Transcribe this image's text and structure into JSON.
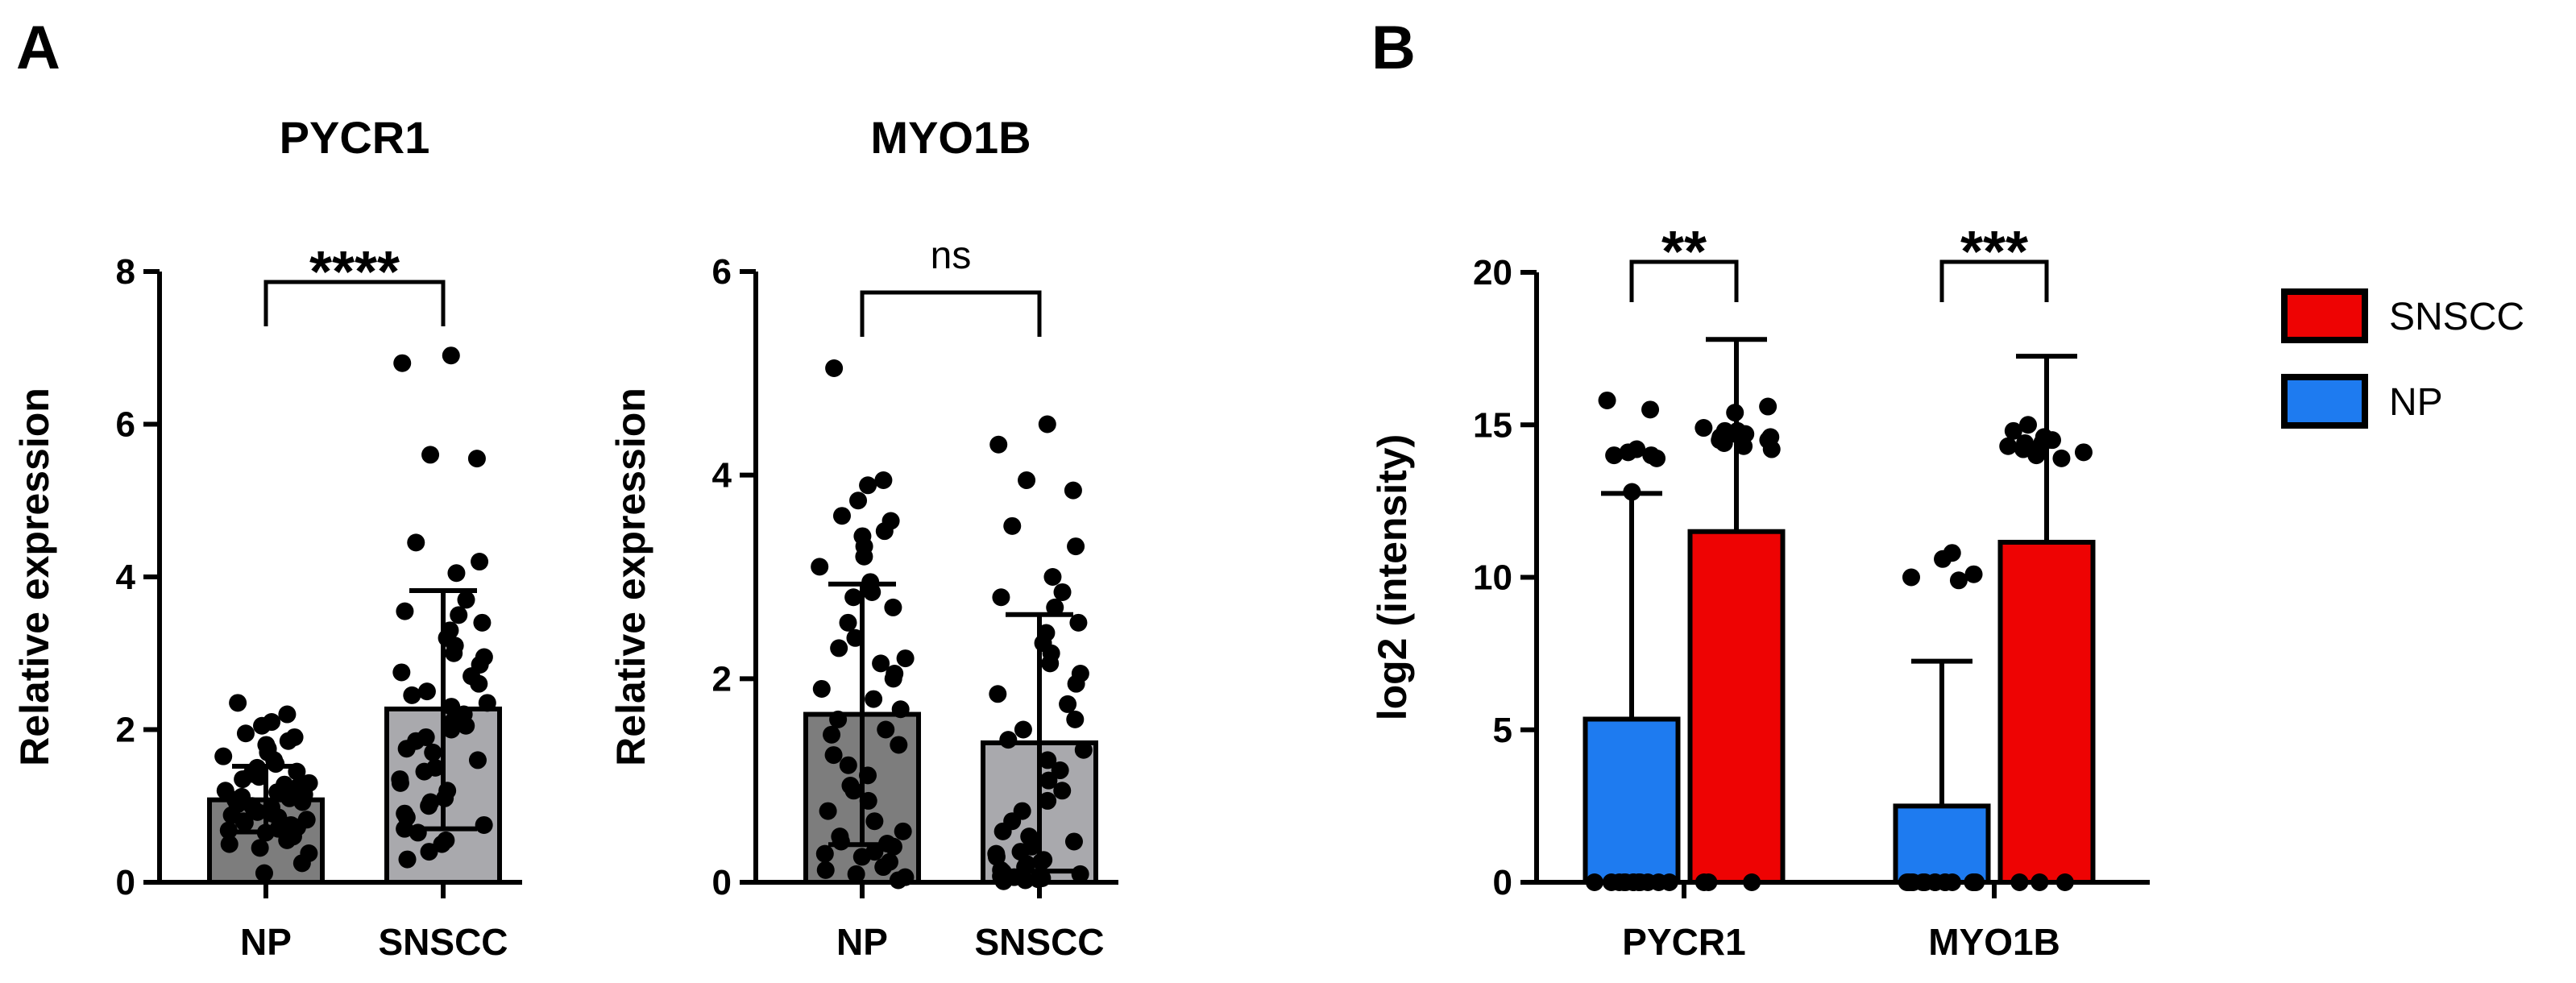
{
  "panels": [
    {
      "letter": "A"
    },
    {
      "letter": "B"
    }
  ],
  "chart_data": [
    {
      "type": "bar",
      "panel": "A",
      "title": "PYCR1",
      "ylabel": "Relative expression",
      "ylim": [
        0,
        8
      ],
      "yticks": [
        "0",
        "2",
        "4",
        "6",
        "8"
      ],
      "categories": [
        "NP",
        "SNSCC"
      ],
      "values": [
        1.08,
        2.27
      ],
      "error_upper": [
        1.52,
        3.82
      ],
      "error_lower": [
        0.66,
        0.7
      ],
      "colors": [
        "#7d7d7d",
        "#a9a9ad"
      ],
      "significance": "****",
      "points": [
        [
          2.35,
          2.2,
          2.1,
          2.05,
          1.95,
          1.9,
          1.85,
          1.8,
          1.75,
          1.7,
          1.65,
          1.6,
          1.55,
          1.5,
          1.45,
          1.42,
          1.38,
          1.35,
          1.3,
          1.28,
          1.25,
          1.22,
          1.2,
          1.18,
          1.15,
          1.12,
          1.1,
          1.08,
          1.05,
          1.02,
          1.0,
          0.98,
          0.95,
          0.92,
          0.9,
          0.88,
          0.85,
          0.82,
          0.8,
          0.78,
          0.75,
          0.72,
          0.7,
          0.68,
          0.65,
          0.6,
          0.55,
          0.5,
          0.45,
          0.38,
          0.25,
          0.12
        ],
        [
          6.9,
          6.8,
          5.6,
          5.55,
          4.45,
          4.2,
          4.05,
          3.7,
          3.55,
          3.5,
          3.4,
          3.3,
          3.2,
          3.1,
          3.0,
          2.95,
          2.85,
          2.75,
          2.7,
          2.6,
          2.5,
          2.45,
          2.35,
          2.3,
          2.2,
          2.1,
          2.05,
          2.0,
          1.9,
          1.85,
          1.75,
          1.7,
          1.6,
          1.5,
          1.45,
          1.35,
          1.3,
          1.2,
          1.1,
          1.05,
          1.0,
          0.9,
          0.85,
          0.75,
          0.7,
          0.65,
          0.55,
          0.5,
          0.4,
          0.3
        ]
      ]
    },
    {
      "type": "bar",
      "panel": "A",
      "title": "MYO1B",
      "ylabel": "Relative expression",
      "ylim": [
        0,
        6
      ],
      "yticks": [
        "0",
        "2",
        "4",
        "6"
      ],
      "categories": [
        "NP",
        "SNSCC"
      ],
      "values": [
        1.65,
        1.37
      ],
      "error_upper": [
        2.93,
        2.63
      ],
      "error_lower": [
        0.37,
        0.11
      ],
      "colors": [
        "#7d7d7d",
        "#a9a9ad"
      ],
      "significance": "ns",
      "points": [
        [
          5.05,
          3.95,
          3.9,
          3.75,
          3.6,
          3.55,
          3.45,
          3.4,
          3.3,
          3.2,
          3.1,
          2.95,
          2.85,
          2.8,
          2.7,
          2.55,
          2.4,
          2.3,
          2.2,
          2.15,
          2.05,
          2.0,
          1.9,
          1.8,
          1.7,
          1.6,
          1.5,
          1.45,
          1.35,
          1.25,
          1.15,
          1.05,
          0.95,
          0.9,
          0.8,
          0.7,
          0.6,
          0.5,
          0.45,
          0.4,
          0.38,
          0.35,
          0.3,
          0.28,
          0.25,
          0.2,
          0.15,
          0.12,
          0.08,
          0.05,
          0.02
        ],
        [
          4.5,
          4.3,
          3.95,
          3.85,
          3.5,
          3.3,
          3.0,
          2.85,
          2.8,
          2.7,
          2.55,
          2.45,
          2.35,
          2.25,
          2.15,
          2.05,
          1.95,
          1.85,
          1.75,
          1.6,
          1.5,
          1.4,
          1.3,
          1.2,
          1.1,
          1.0,
          0.9,
          0.8,
          0.7,
          0.6,
          0.5,
          0.45,
          0.4,
          0.35,
          0.3,
          0.28,
          0.25,
          0.22,
          0.2,
          0.18,
          0.15,
          0.12,
          0.1,
          0.08,
          0.06,
          0.05,
          0.04,
          0.03,
          0.02,
          0.01
        ]
      ]
    },
    {
      "type": "bar",
      "panel": "B",
      "title": "",
      "ylabel": "log2 (intensity)",
      "ylim": [
        0,
        20
      ],
      "yticks": [
        "0",
        "5",
        "10",
        "15",
        "20"
      ],
      "categories": [
        "PYCR1",
        "MYO1B"
      ],
      "series": [
        {
          "name": "NP",
          "color": "#1e7bf0",
          "values": [
            5.35,
            2.5
          ],
          "error_upper": [
            12.75,
            7.25
          ],
          "points": [
            [
              15.8,
              15.5,
              14.2,
              14.1,
              14.0,
              13.9,
              14.0,
              12.8,
              0,
              0,
              0,
              0,
              0,
              0,
              0,
              0,
              0,
              0,
              0,
              0
            ],
            [
              10.8,
              10.6,
              10.1,
              9.9,
              10.0,
              0,
              0,
              0,
              0,
              0,
              0,
              0,
              0,
              0,
              0,
              0,
              0,
              0,
              0,
              0
            ]
          ]
        },
        {
          "name": "SNSCC",
          "color": "#ee0303",
          "values": [
            11.5,
            11.15
          ],
          "error_upper": [
            17.8,
            17.25
          ],
          "points": [
            [
              15.6,
              15.4,
              14.8,
              14.7,
              14.9,
              14.5,
              14.6,
              14.4,
              14.7,
              14.3,
              14.8,
              14.5,
              14.6,
              14.2,
              0,
              0,
              0
            ],
            [
              15.0,
              14.8,
              14.5,
              14.4,
              14.6,
              14.2,
              14.3,
              14.0,
              14.1,
              14.5,
              14.2,
              14.4,
              13.9,
              0,
              0,
              0
            ]
          ]
        }
      ],
      "significance": [
        "**",
        "***"
      ],
      "legend_position": "right",
      "legend_entries": [
        "SNSCC",
        "NP"
      ]
    }
  ]
}
